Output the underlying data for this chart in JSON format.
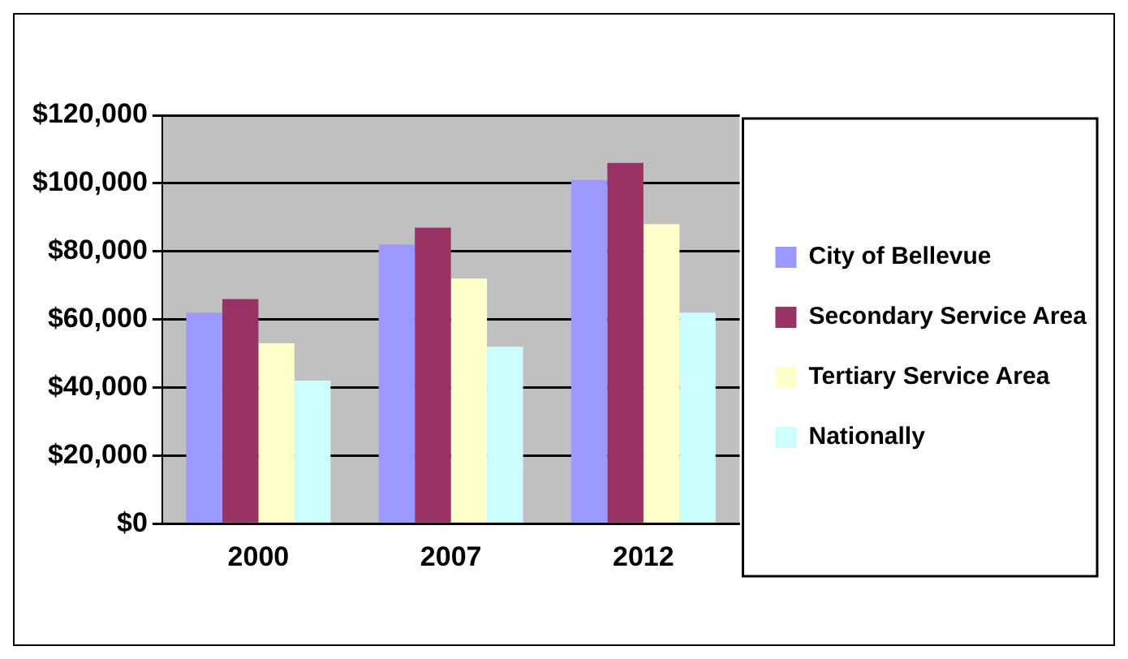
{
  "chart_data": {
    "type": "bar",
    "categories": [
      "2000",
      "2007",
      "2012"
    ],
    "series": [
      {
        "name": "City of Bellevue",
        "color": "#9999ff",
        "values": [
          62000,
          82000,
          101000
        ]
      },
      {
        "name": "Secondary Service Area",
        "color": "#993366",
        "values": [
          66000,
          87000,
          106000
        ]
      },
      {
        "name": "Tertiary Service Area",
        "color": "#ffffcc",
        "values": [
          53000,
          72000,
          88000
        ]
      },
      {
        "name": "Nationally",
        "color": "#ccffff",
        "values": [
          42000,
          52000,
          62000
        ]
      }
    ],
    "ylim": [
      0,
      120000
    ],
    "yticks": [
      {
        "value": 0,
        "label": "$0"
      },
      {
        "value": 20000,
        "label": "$20,000"
      },
      {
        "value": 40000,
        "label": "$40,000"
      },
      {
        "value": 60000,
        "label": "$60,000"
      },
      {
        "value": 80000,
        "label": "$80,000"
      },
      {
        "value": 100000,
        "label": "$100,000"
      },
      {
        "value": 120000,
        "label": "$120,000"
      }
    ],
    "grid": "y",
    "legend": "right"
  }
}
